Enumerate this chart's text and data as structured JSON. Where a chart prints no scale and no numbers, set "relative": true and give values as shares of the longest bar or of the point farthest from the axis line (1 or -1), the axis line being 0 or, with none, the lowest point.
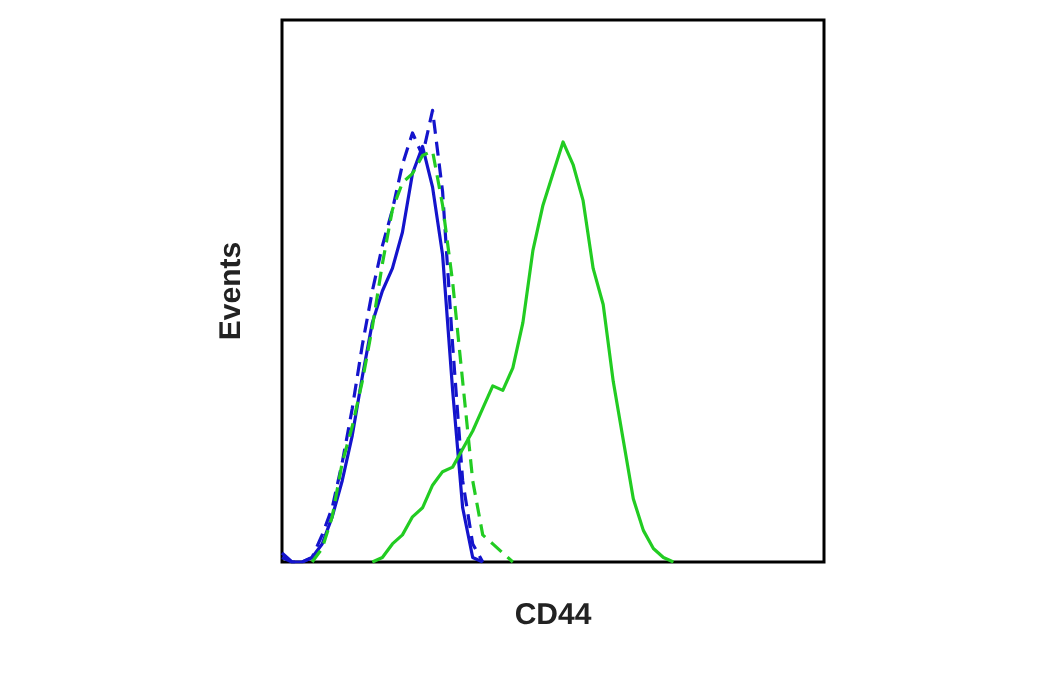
{
  "chart_data": {
    "type": "line",
    "relative": true,
    "xlabel": "CD44",
    "ylabel": "Events",
    "legend": false,
    "marker": "none",
    "categories": [
      null,
      null,
      null,
      null,
      null,
      null,
      null,
      null,
      null,
      null,
      null,
      null,
      null,
      null,
      null,
      null,
      null,
      null,
      null,
      null,
      null,
      null,
      null,
      null,
      null,
      null,
      null,
      null,
      null,
      null,
      null,
      null,
      null,
      null,
      null,
      null,
      null,
      null,
      null,
      null,
      null,
      null,
      null,
      null,
      null,
      null,
      null,
      null,
      null,
      null,
      null,
      null,
      null,
      null,
      null
    ],
    "series": [
      {
        "color": "#22cc22",
        "line_style": "solid",
        "values": [
          null,
          null,
          null,
          null,
          null,
          null,
          null,
          null,
          null,
          0,
          0.01,
          0.04,
          0.06,
          0.1,
          0.12,
          0.17,
          0.2,
          0.21,
          0.25,
          0.29,
          0.34,
          0.39,
          0.38,
          0.43,
          0.53,
          0.69,
          0.79,
          0.86,
          0.93,
          0.88,
          0.8,
          0.65,
          0.57,
          0.4,
          0.27,
          0.14,
          0.07,
          0.03,
          0.01,
          0,
          null,
          null,
          null,
          null,
          null,
          null,
          null,
          null,
          null,
          null,
          null,
          null,
          null,
          null,
          null
        ]
      },
      {
        "color": "#22cc22",
        "line_style": "dashed",
        "values": [
          null,
          null,
          null,
          0,
          0.03,
          0.1,
          0.22,
          0.3,
          0.4,
          0.52,
          0.66,
          0.78,
          0.84,
          0.86,
          0.9,
          0.91,
          0.79,
          0.62,
          0.4,
          0.18,
          0.06,
          0.04,
          0.02,
          0,
          null,
          null,
          null,
          null,
          null,
          null,
          null,
          null,
          null,
          null,
          null,
          null,
          null,
          null,
          null,
          null,
          null,
          null,
          null,
          null,
          null,
          null,
          null,
          null,
          null,
          null,
          null,
          null,
          null,
          null,
          null
        ]
      },
      {
        "color": "#1414cc",
        "line_style": "dashed",
        "values": [
          0.01,
          0,
          0,
          0.01,
          0.06,
          0.12,
          0.22,
          0.34,
          0.48,
          0.6,
          0.7,
          0.78,
          0.88,
          0.95,
          0.9,
          1,
          0.82,
          0.48,
          0.18,
          0.04,
          0,
          null,
          null,
          null,
          null,
          null,
          null,
          null,
          null,
          null,
          null,
          null,
          null,
          null,
          null,
          null,
          null,
          null,
          null,
          null,
          null,
          null,
          null,
          null,
          null,
          null,
          null,
          null,
          null,
          null,
          null,
          null,
          null,
          null,
          null
        ]
      },
      {
        "color": "#1414cc",
        "line_style": "solid",
        "values": [
          0.02,
          0,
          0,
          0.01,
          0.04,
          0.1,
          0.18,
          0.28,
          0.41,
          0.53,
          0.6,
          0.65,
          0.73,
          0.86,
          0.92,
          0.83,
          0.68,
          0.38,
          0.12,
          0.01,
          0,
          null,
          null,
          null,
          null,
          null,
          null,
          null,
          null,
          null,
          null,
          null,
          null,
          null,
          null,
          null,
          null,
          null,
          null,
          null,
          null,
          null,
          null,
          null,
          null,
          null,
          null,
          null,
          null,
          null,
          null,
          null,
          null,
          null,
          null
        ]
      }
    ]
  }
}
